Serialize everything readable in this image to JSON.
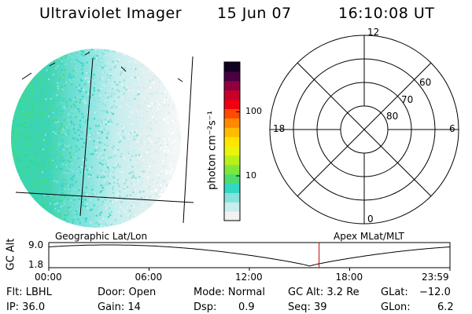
{
  "header": {
    "instrument": "Ultraviolet Imager",
    "date": "15 Jun 07",
    "time": "16:10:08 UT"
  },
  "colorbar": {
    "label": "photon cm⁻²s⁻¹",
    "ticks": [
      {
        "value": 10,
        "label": "10"
      },
      {
        "value": 100,
        "label": "100"
      }
    ],
    "range": [
      2,
      600
    ],
    "scale": "log",
    "colors": [
      "#f2f2f2",
      "#c8eeee",
      "#86e2dc",
      "#33d8c4",
      "#4cdc70",
      "#7ee83a",
      "#b8f01a",
      "#e8f40c",
      "#ffe600",
      "#ffbc00",
      "#ff8a00",
      "#ff4a00",
      "#f00010",
      "#c8002a",
      "#900040",
      "#4a0040",
      "#120020"
    ]
  },
  "polar_plot": {
    "mlt_labels": [
      {
        "mlt": 12,
        "label": "12"
      },
      {
        "mlt": 18,
        "label": "18"
      },
      {
        "mlt": 6,
        "label": "6"
      },
      {
        "mlt": 0,
        "label": "0"
      }
    ],
    "lat_rings": [
      {
        "lat": 80,
        "label": "80"
      },
      {
        "lat": 70,
        "label": "70"
      },
      {
        "lat": 60,
        "label": "60"
      }
    ]
  },
  "orbit_plot": {
    "ylabel": "GC Alt",
    "yticks": [
      "9.0",
      "1.8"
    ],
    "left_title": "Geographic Lat/Lon",
    "right_title": "Apex MLat/MLT",
    "xticks": [
      "00:00",
      "06:00",
      "12:00",
      "18:00",
      "23:59"
    ],
    "current_time_hours": 16.17,
    "line_color": "#000000",
    "marker_color": "#cc0000"
  },
  "info": {
    "filter": "Flt: LBHL",
    "ip": "IP: 36.0",
    "door": "Door: Open",
    "gain": "Gain: 14",
    "mode": "Mode: Normal",
    "dsp_label": "Dsp:",
    "dsp_value": "0.9",
    "gc_alt": "GC Alt: 3.2 Re",
    "seq": "Seq: 39",
    "glat_label": "GLat:",
    "glat_value": "−12.0",
    "glon_label": "GLon:",
    "glon_value": "6.2"
  }
}
